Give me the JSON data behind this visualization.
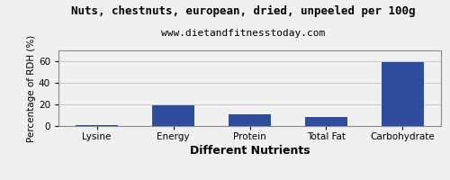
{
  "title": "Nuts, chestnuts, european, dried, unpeeled per 100g",
  "subtitle": "www.dietandfitnesstoday.com",
  "xlabel": "Different Nutrients",
  "ylabel": "Percentage of RDH (%)",
  "categories": [
    "Lysine",
    "Energy",
    "Protein",
    "Total Fat",
    "Carbohydrate"
  ],
  "values": [
    0.5,
    19.5,
    11.0,
    8.0,
    59.5
  ],
  "bar_color": "#2e4d9c",
  "ylim": [
    0,
    70
  ],
  "yticks": [
    0,
    20,
    40,
    60
  ],
  "background_color": "#f0f0f0",
  "title_fontsize": 9,
  "subtitle_fontsize": 8,
  "xlabel_fontsize": 9,
  "ylabel_fontsize": 7.5,
  "tick_fontsize": 7.5,
  "grid_color": "#cccccc"
}
